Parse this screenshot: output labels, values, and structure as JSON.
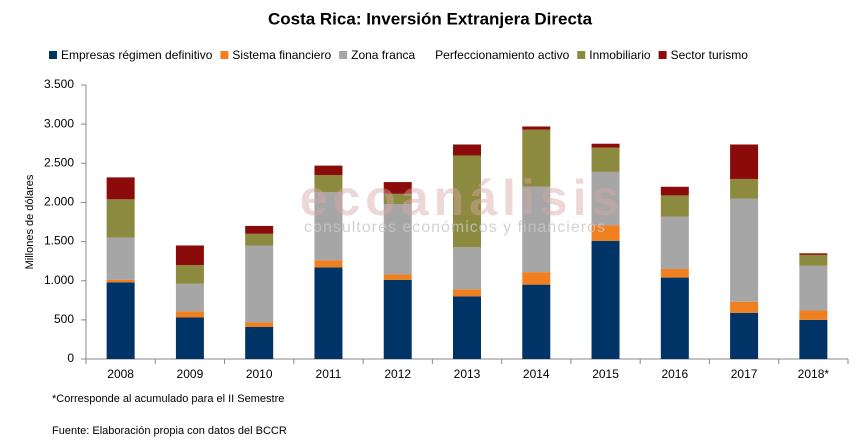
{
  "chart_data": {
    "type": "stacked_bar",
    "title": "Costa Rica: Inversión Extranjera Directa",
    "y_label": "Millones de dólares",
    "categories": [
      "2008",
      "2009",
      "2010",
      "2011",
      "2012",
      "2013",
      "2014",
      "2015",
      "2016",
      "2017",
      "2018*"
    ],
    "series": [
      {
        "name": "Empresas régimen definitivo",
        "color": "#003366",
        "values": [
          980,
          530,
          410,
          1170,
          1010,
          800,
          950,
          1510,
          1040,
          590,
          500
        ]
      },
      {
        "name": "Sistema financiero",
        "color": "#f07f20",
        "values": [
          30,
          80,
          60,
          90,
          70,
          90,
          160,
          200,
          110,
          140,
          120
        ]
      },
      {
        "name": "Zona franca",
        "color": "#a6a6a6",
        "values": [
          540,
          350,
          980,
          870,
          900,
          540,
          1090,
          680,
          670,
          1320,
          570
        ]
      },
      {
        "name": "Perfeccionamiento activo",
        "color": "#ffffff",
        "values": [
          0,
          0,
          0,
          0,
          0,
          0,
          0,
          0,
          0,
          0,
          0
        ]
      },
      {
        "name": "Inmobiliario",
        "color": "#8c8a3e",
        "values": [
          490,
          240,
          150,
          220,
          130,
          1170,
          730,
          310,
          270,
          250,
          140
        ]
      },
      {
        "name": "Sector turismo",
        "color": "#8b0a0a",
        "values": [
          280,
          250,
          100,
          120,
          150,
          140,
          40,
          50,
          110,
          440,
          20
        ]
      }
    ],
    "ylim": [
      0,
      3500
    ],
    "yticks": [
      0,
      500,
      {
        "value": 1000,
        "label": "1.000"
      },
      {
        "value": 1500,
        "label": "1.500"
      },
      {
        "value": 2000,
        "label": "2.000"
      },
      {
        "value": 2500,
        "label": "2.500"
      },
      {
        "value": 3000,
        "label": "3.000"
      },
      {
        "value": 3500,
        "label": "3.500"
      }
    ],
    "grid": false,
    "watermark": "ecoanálisis",
    "watermark_subtitle": "consultores económicos y financieros",
    "notes": [
      "*Corresponde al acumulado para el II Semestre",
      "Fuente: Elaboración propia con datos del BCCR"
    ]
  }
}
